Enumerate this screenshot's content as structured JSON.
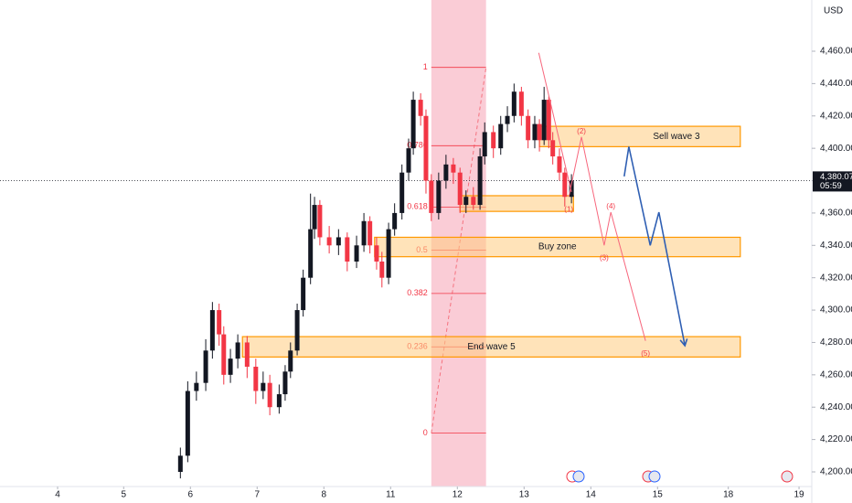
{
  "chart_data": {
    "type": "candlestick",
    "currency": "USD",
    "xlim": [
      -0.863,
      11.301
    ],
    "ylim": [
      4190.95,
      4491.65
    ],
    "xticks": [
      {
        "value": 0,
        "label": "4"
      },
      {
        "value": 0.99,
        "label": "5"
      },
      {
        "value": 1.99,
        "label": "6"
      },
      {
        "value": 2.99,
        "label": "7"
      },
      {
        "value": 3.99,
        "label": "8"
      },
      {
        "value": 4.99,
        "label": "11"
      },
      {
        "value": 5.99,
        "label": "12"
      },
      {
        "value": 6.99,
        "label": "13"
      },
      {
        "value": 7.99,
        "label": "14"
      },
      {
        "value": 8.99,
        "label": "15"
      },
      {
        "value": 10.05,
        "label": "18"
      },
      {
        "value": 11.11,
        "label": "19"
      }
    ],
    "yticks": [
      {
        "value": 4200,
        "label": "4,200.000"
      },
      {
        "value": 4220,
        "label": "4,220.000"
      },
      {
        "value": 4240,
        "label": "4,240.000"
      },
      {
        "value": 4260,
        "label": "4,260.000"
      },
      {
        "value": 4280,
        "label": "4,280.000"
      },
      {
        "value": 4300,
        "label": "4,300.000"
      },
      {
        "value": 4320,
        "label": "4,320.000"
      },
      {
        "value": 4340,
        "label": "4,340.000"
      },
      {
        "value": 4360,
        "label": "4,360.000"
      },
      {
        "value": 4380,
        "label": "4,380.000"
      },
      {
        "value": 4400,
        "label": "4,400.000"
      },
      {
        "value": 4420,
        "label": "4,420.000"
      },
      {
        "value": 4440,
        "label": "4,440.000"
      },
      {
        "value": 4460,
        "label": "4,460.000"
      }
    ],
    "up_color": "#131722",
    "down_color": "#f23645",
    "x": [
      1.84,
      1.95,
      2.08,
      2.22,
      2.32,
      2.42,
      2.49,
      2.59,
      2.7,
      2.84,
      2.97,
      3.08,
      3.18,
      3.32,
      3.41,
      3.49,
      3.59,
      3.68,
      3.79,
      3.85,
      3.93,
      4.07,
      4.21,
      4.34,
      4.48,
      4.59,
      4.68,
      4.78,
      4.86,
      4.96,
      5.05,
      5.16,
      5.26,
      5.33,
      5.44,
      5.52,
      5.6,
      5.71,
      5.82,
      5.93,
      6.03,
      6.12,
      6.23,
      6.33,
      6.4,
      6.53,
      6.64,
      6.74,
      6.84,
      6.95,
      7.05,
      7.15,
      7.22,
      7.29,
      7.36,
      7.42,
      7.52,
      7.6,
      7.7
    ],
    "open": [
      4200,
      4210,
      4250,
      4255,
      4275,
      4300,
      4285,
      4260,
      4270,
      4280,
      4265,
      4250,
      4255,
      4240,
      4248,
      4262,
      4275,
      4300,
      4320,
      4350,
      4365,
      4345,
      4340,
      4345,
      4330,
      4340,
      4355,
      4340,
      4330,
      4320,
      4350,
      4360,
      4385,
      4400,
      4430,
      4420,
      4380,
      4360,
      4380,
      4390,
      4385,
      4365,
      4370,
      4365,
      4395,
      4410,
      4400,
      4415,
      4420,
      4435,
      4420,
      4405,
      4415,
      4405,
      4430,
      4405,
      4395,
      4385,
      4370
    ],
    "high": [
      4215,
      4256,
      4262,
      4282,
      4305,
      4304,
      4290,
      4276,
      4285,
      4284,
      4270,
      4262,
      4260,
      4254,
      4266,
      4280,
      4304,
      4325,
      4372,
      4370,
      4368,
      4352,
      4350,
      4348,
      4346,
      4360,
      4358,
      4345,
      4336,
      4354,
      4366,
      4390,
      4406,
      4435,
      4434,
      4424,
      4384,
      4385,
      4396,
      4394,
      4388,
      4374,
      4376,
      4400,
      4416,
      4414,
      4420,
      4426,
      4440,
      4438,
      4424,
      4420,
      4418,
      4438,
      4432,
      4410,
      4400,
      4388,
      4384
    ],
    "low": [
      4196,
      4206,
      4244,
      4250,
      4270,
      4278,
      4254,
      4255,
      4264,
      4258,
      4242,
      4245,
      4235,
      4236,
      4244,
      4258,
      4272,
      4296,
      4316,
      4344,
      4340,
      4335,
      4334,
      4324,
      4326,
      4336,
      4335,
      4325,
      4314,
      4316,
      4346,
      4356,
      4380,
      4396,
      4414,
      4372,
      4355,
      4356,
      4375,
      4378,
      4360,
      4360,
      4362,
      4362,
      4390,
      4394,
      4396,
      4410,
      4416,
      4414,
      4400,
      4400,
      4398,
      4402,
      4400,
      4390,
      4380,
      4364,
      4366
    ],
    "close": [
      4210,
      4250,
      4255,
      4275,
      4300,
      4285,
      4260,
      4270,
      4280,
      4265,
      4250,
      4255,
      4240,
      4248,
      4262,
      4275,
      4300,
      4320,
      4350,
      4365,
      4345,
      4340,
      4345,
      4330,
      4340,
      4355,
      4340,
      4330,
      4320,
      4350,
      4360,
      4385,
      4400,
      4430,
      4420,
      4380,
      4360,
      4380,
      4390,
      4385,
      4365,
      4370,
      4365,
      4395,
      4410,
      4400,
      4415,
      4420,
      4435,
      4420,
      4405,
      4415,
      4405,
      4430,
      4405,
      4395,
      4385,
      4370,
      4380
    ],
    "last_price": {
      "value": 4380.075,
      "label": "4,380.075"
    },
    "countdown": "05:59",
    "fib": {
      "x": [
        5.6,
        6.42
      ],
      "color": "#f23645",
      "shade": "#f8bbc8",
      "levels": [
        {
          "ratio": 1,
          "price": 4450
        },
        {
          "ratio": 0.786,
          "price": 4401.6
        },
        {
          "ratio": 0.618,
          "price": 4363.7
        },
        {
          "ratio": 0.5,
          "price": 4337
        },
        {
          "ratio": 0.382,
          "price": 4310.3
        },
        {
          "ratio": 0.236,
          "price": 4277.3
        },
        {
          "ratio": 0,
          "price": 4224
        }
      ]
    },
    "zones": [
      {
        "label": "Sell wave 3",
        "x": [
          7.22,
          10.23
        ],
        "price": [
          4401,
          4413.6
        ]
      },
      {
        "label": null,
        "x": [
          6.03,
          7.73
        ],
        "price": [
          4361,
          4370.7
        ]
      },
      {
        "label": "Buy zone",
        "x": [
          4.75,
          10.23
        ],
        "price": [
          4333,
          4345
        ]
      },
      {
        "label": "End wave 5",
        "x": [
          2.77,
          10.23
        ],
        "price": [
          4271,
          4283.6
        ]
      }
    ],
    "trendline": {
      "x": [
        7.21,
        7.7
      ],
      "price": [
        4459,
        4373
      ]
    },
    "waves": [
      {
        "color": "#f7677d",
        "labels": [
          "(1)",
          "(2)",
          "(3)",
          "(4)",
          "(5)"
        ],
        "x": [
          7.66,
          7.85,
          8.19,
          8.29,
          8.81
        ],
        "price": [
          4370,
          4407,
          4340,
          4360.5,
          4281
        ]
      },
      {
        "color": "#2f5fb3",
        "labels": null,
        "x": [
          8.49,
          8.56,
          8.88,
          9.01,
          9.4
        ],
        "price": [
          4382.6,
          4401,
          4340,
          4360.5,
          4278
        ]
      }
    ]
  }
}
